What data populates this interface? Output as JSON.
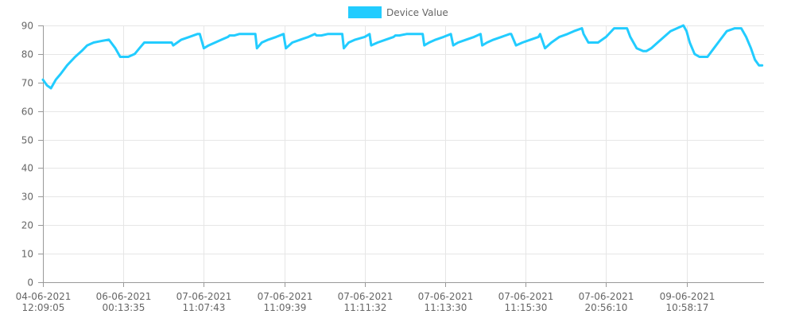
{
  "chart_data": {
    "type": "line",
    "title": "",
    "xlabel": "",
    "ylabel": "",
    "ylim": [
      0,
      90
    ],
    "y_ticks": [
      0,
      10,
      20,
      30,
      40,
      50,
      60,
      70,
      80,
      90
    ],
    "x_ticks": [
      {
        "date": "04-06-2021",
        "time": "12:09:05",
        "pos": 0
      },
      {
        "date": "06-06-2021",
        "time": "00:13:35",
        "pos": 1
      },
      {
        "date": "07-06-2021",
        "time": "11:07:43",
        "pos": 2
      },
      {
        "date": "07-06-2021",
        "time": "11:09:39",
        "pos": 3
      },
      {
        "date": "07-06-2021",
        "time": "11:11:32",
        "pos": 4
      },
      {
        "date": "07-06-2021",
        "time": "11:13:30",
        "pos": 5
      },
      {
        "date": "07-06-2021",
        "time": "11:15:30",
        "pos": 6
      },
      {
        "date": "07-06-2021",
        "time": "20:56:10",
        "pos": 7
      },
      {
        "date": "09-06-2021",
        "time": "10:58:17",
        "pos": 8
      }
    ],
    "x_range": [
      0,
      8.94
    ],
    "grid": true,
    "legend": "top-center",
    "series": [
      {
        "name": "Device Value",
        "color": "#22ccff",
        "x": [
          0,
          0.05,
          0.1,
          0.16,
          0.22,
          0.3,
          0.4,
          0.48,
          0.55,
          0.63,
          0.72,
          0.82,
          0.9,
          0.96,
          1.0,
          1.06,
          1.14,
          1.2,
          1.26,
          1.3,
          1.4,
          1.5,
          1.6,
          1.62,
          1.72,
          1.82,
          1.92,
          1.95,
          2.0,
          2.06,
          2.14,
          2.22,
          2.3,
          2.32,
          2.38,
          2.44,
          2.54,
          2.64,
          2.66,
          2.72,
          2.8,
          2.9,
          2.99,
          3.02,
          3.1,
          3.2,
          3.3,
          3.38,
          3.4,
          3.46,
          3.54,
          3.62,
          3.72,
          3.74,
          3.8,
          3.88,
          4.0,
          4.06,
          4.08,
          4.16,
          4.26,
          4.36,
          4.38,
          4.43,
          4.52,
          4.62,
          4.72,
          4.74,
          4.8,
          4.88,
          4.98,
          5.07,
          5.1,
          5.16,
          5.26,
          5.36,
          5.44,
          5.46,
          5.52,
          5.6,
          5.7,
          5.8,
          5.82,
          5.88,
          5.96,
          6.06,
          6.16,
          6.18,
          6.24,
          6.32,
          6.42,
          6.52,
          6.6,
          6.7,
          6.72,
          6.78,
          6.85,
          6.9,
          7.0,
          7.1,
          7.12,
          7.26,
          7.3,
          7.38,
          7.46,
          7.5,
          7.56,
          7.64,
          7.72,
          7.8,
          7.88,
          7.96,
          8.0,
          8.04,
          8.1,
          8.16,
          8.26,
          8.34,
          8.42,
          8.5,
          8.6,
          8.68,
          8.74,
          8.8,
          8.85,
          8.9,
          8.94
        ],
        "y": [
          71,
          69,
          68,
          71,
          73,
          76,
          79,
          81,
          83,
          84,
          84.5,
          85,
          82,
          79,
          79,
          79,
          80,
          82,
          84,
          84,
          84,
          84,
          84,
          83,
          85,
          86,
          87,
          87,
          82,
          83,
          84,
          85,
          86,
          86.5,
          86.5,
          87,
          87,
          87,
          82,
          84,
          85,
          86,
          87,
          82,
          84,
          85,
          86,
          87,
          86.5,
          86.5,
          87,
          87,
          87,
          82,
          84,
          85,
          86,
          87,
          83,
          84,
          85,
          86,
          86.5,
          86.5,
          87,
          87,
          87,
          83,
          84,
          85,
          86,
          87,
          83,
          84,
          85,
          86,
          87,
          83,
          84,
          85,
          86,
          87,
          87,
          83,
          84,
          85,
          86,
          87,
          82,
          84,
          86,
          87,
          88,
          89,
          87,
          84,
          84,
          84,
          86,
          89,
          89,
          89,
          86,
          82,
          81,
          81,
          82,
          84,
          86,
          88,
          89,
          90,
          88,
          84,
          80,
          79,
          79,
          82,
          85,
          88,
          89,
          89,
          86,
          82,
          78,
          76,
          76
        ]
      }
    ]
  }
}
